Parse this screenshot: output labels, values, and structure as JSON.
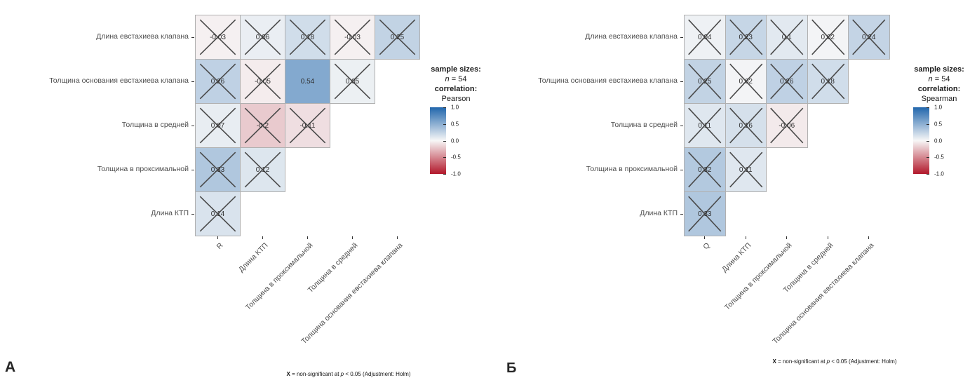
{
  "colors": {
    "positive": "#2166AC",
    "negative": "#B2182B",
    "neutral": "#F7F7F7",
    "cell_border": "#B0B0B0",
    "x_mark": "#4A4A4A",
    "axis_text": "#4D4D4D"
  },
  "chart_data": [
    {
      "type": "heatmap",
      "panel_label": "А",
      "x_labels": [
        "R",
        "Длина КТП",
        "Толщина в проксимальной",
        "Толщина в средней",
        "Толщина основания евстахиева клапана"
      ],
      "y_labels": [
        "Длина евстахиева клапана",
        "Толщина основания евстахиева клапана",
        "Толщина в средней",
        "Толщина в проксимальной",
        "Длина КТП"
      ],
      "values": [
        [
          -0.03,
          0.06,
          0.18,
          -0.03,
          0.25
        ],
        [
          0.26,
          -0.05,
          0.54,
          0.05
        ],
        [
          0.07,
          -0.2,
          -0.11
        ],
        [
          0.33,
          0.12
        ],
        [
          0.14
        ]
      ],
      "non_significant": [
        [
          true,
          true,
          true,
          true,
          true
        ],
        [
          true,
          true,
          false,
          true
        ],
        [
          true,
          true,
          true
        ],
        [
          true,
          true
        ],
        [
          true
        ]
      ],
      "legend": {
        "sample_sizes_label": "sample sizes:",
        "n_italic": "n",
        "n_rest": " = 54",
        "correlation_label": "correlation:",
        "method": "Pearson",
        "colorbar_ticks": [
          1.0,
          0.5,
          0.0,
          -0.5,
          -1.0
        ]
      },
      "footnote": {
        "x": "X",
        "mid": " = non-significant at ",
        "p": "p",
        "tail": " < 0.05 (Adjustment: Holm)"
      }
    },
    {
      "type": "heatmap",
      "panel_label": "Б",
      "x_labels": [
        "Q",
        "Длина КТП",
        "Толщина в проксимальной",
        "Толщина в средней",
        "Толщина основания евстахиева клапана"
      ],
      "y_labels": [
        "Длина евстахиева клапана",
        "Толщина основания евстахиева клапана",
        "Толщина в средней",
        "Толщина в проксимальной",
        "Длина КТП"
      ],
      "values": [
        [
          0.04,
          0.23,
          0.1,
          0.02,
          0.24
        ],
        [
          0.25,
          0.02,
          0.26,
          0.18
        ],
        [
          0.11,
          0.16,
          -0.06
        ],
        [
          0.32,
          0.11
        ],
        [
          0.33
        ]
      ],
      "non_significant": [
        [
          true,
          true,
          true,
          true,
          true
        ],
        [
          true,
          true,
          true,
          true
        ],
        [
          true,
          true,
          true
        ],
        [
          true,
          true
        ],
        [
          true
        ]
      ],
      "legend": {
        "sample_sizes_label": "sample sizes:",
        "n_italic": "n",
        "n_rest": " = 54",
        "correlation_label": "correlation:",
        "method": "Spearman",
        "colorbar_ticks": [
          1.0,
          0.5,
          0.0,
          -0.5,
          -1.0
        ]
      },
      "footnote": {
        "x": "X",
        "mid": " = non-significant at ",
        "p": "p",
        "tail": " < 0.05 (Adjustment: Holm)"
      }
    }
  ]
}
